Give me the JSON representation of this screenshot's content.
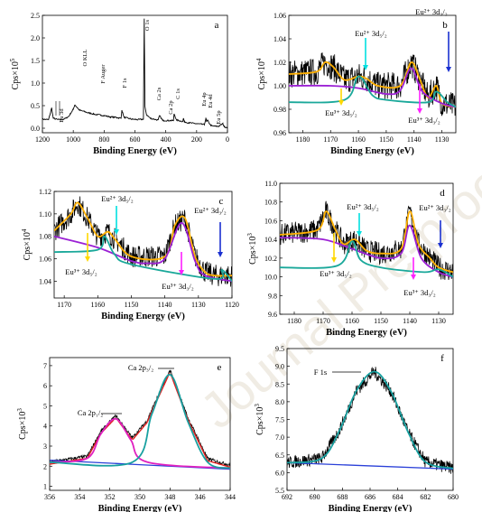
{
  "watermark": "Journal Pre-proof",
  "panels": [
    {
      "id": "a",
      "label": "a",
      "ylabel_base": "Cps×10",
      "ylabel_exp": "5",
      "xlabel": "Binding Energy (eV)",
      "annotations": [
        "O 1s",
        "O KLL",
        "F Auger",
        "F 1s",
        "Ca 2s",
        "C 1s",
        "Ca 2p",
        "Eu 4p",
        "Eu 4d",
        "Eu 3d",
        "Eu 5p"
      ]
    },
    {
      "id": "b",
      "label": "b",
      "ylabel_base": "Cps×10",
      "ylabel_exp": "4",
      "xlabel": "Binding Energy (eV)",
      "annotations": [
        "Eu³⁺ 3d₅/₂",
        "Eu²⁺ 3d₅/₂",
        "Eu³⁺ 3d₃/₂",
        "Eu²⁺ 3d₃/₂"
      ]
    },
    {
      "id": "c",
      "label": "c",
      "ylabel_base": "Cps×10",
      "ylabel_exp": "4",
      "xlabel": "Binding Energy (eV)",
      "annotations": [
        "Eu³⁺ 3d₅/₂",
        "Eu²⁺ 3d₅/₂",
        "Eu³⁺ 3d₃/₂",
        "Eu²⁺ 3d₃/₂"
      ]
    },
    {
      "id": "d",
      "label": "d",
      "ylabel_base": "Cps×10",
      "ylabel_exp": "3",
      "xlabel": "Bindng Energy (eV)",
      "annotations": [
        "Eu³⁺ 3d₅/₂",
        "Eu²⁺ 3d₅/₂",
        "Eu³⁺ 3d₃/₂",
        "Eu²⁺ 3d₃/₂"
      ]
    },
    {
      "id": "e",
      "label": "e",
      "ylabel_base": "Cps×10",
      "ylabel_exp": "3",
      "xlabel": "Binding Energy (eV)",
      "annotations": [
        "Ca 2p₃/₂",
        "Ca 2p₁/₂"
      ]
    },
    {
      "id": "f",
      "label": "f",
      "ylabel_base": "Cps×10",
      "ylabel_exp": "3",
      "xlabel": "Binding Energy (eV)",
      "annotations": [
        "F 1s"
      ]
    }
  ],
  "colors": {
    "raw": "#000000",
    "envelope": "#ffb000",
    "eu3_fit": "#9b20d4",
    "eu2_fit": "#1aa89a",
    "eu3_peak": "#e020c0",
    "eu2_peak": "#1a30d0",
    "background": "#2a40d8",
    "arrow_yellow": "#ffd800",
    "arrow_cyan": "#00e0e0",
    "arrow_magenta": "#ff20ff",
    "arrow_blue": "#1a30d0",
    "ca_peak1": "#e020c0",
    "ca_peak2": "#18a0a0",
    "ca_bg": "#2a40d8",
    "fit_red": "#e02020"
  },
  "chart_data": [
    {
      "panel": "a",
      "type": "line",
      "x_reversed": true,
      "xlim": [
        1200,
        0
      ],
      "ylim": [
        -0.1,
        2.5
      ],
      "xticks": [
        1200,
        1000,
        800,
        600,
        400,
        200,
        0
      ],
      "yticks": [
        0.0,
        0.5,
        1.0,
        1.5,
        2.0,
        2.5
      ],
      "series": [
        {
          "x": [
            1200,
            1160,
            1140,
            1130,
            1100,
            1060,
            1030,
            1000,
            990,
            980,
            960,
            900,
            850,
            820,
            800,
            760,
            720,
            690,
            685,
            670,
            620,
            580,
            545,
            540,
            535,
            525,
            500,
            450,
            440,
            420,
            350,
            346,
            330,
            290,
            285,
            280,
            250,
            200,
            150,
            140,
            135,
            130,
            110,
            100,
            60,
            30,
            20,
            0
          ],
          "y": [
            0.2,
            0.19,
            0.45,
            0.22,
            0.19,
            0.2,
            0.26,
            0.42,
            0.52,
            0.48,
            0.4,
            0.34,
            0.3,
            0.29,
            0.28,
            0.25,
            0.24,
            0.22,
            0.4,
            0.24,
            0.2,
            0.19,
            0.2,
            2.42,
            0.48,
            0.3,
            0.22,
            0.18,
            0.28,
            0.17,
            0.17,
            0.32,
            0.18,
            0.15,
            0.22,
            0.14,
            0.12,
            0.1,
            0.08,
            0.22,
            0.14,
            0.18,
            0.07,
            0.05,
            0.04,
            0.1,
            0.03,
            0.02
          ]
        }
      ]
    },
    {
      "panel": "b",
      "type": "line",
      "x_reversed": true,
      "xlim": [
        1185,
        1125
      ],
      "ylim": [
        0.96,
        1.06
      ],
      "xticks": [
        1180,
        1170,
        1160,
        1150,
        1140,
        1130
      ],
      "yticks": [
        0.96,
        0.98,
        1.0,
        1.02,
        1.04,
        1.06
      ],
      "series": [
        {
          "name": "envelope",
          "x": [
            1185,
            1175,
            1172,
            1169,
            1165,
            1160,
            1157,
            1153,
            1145,
            1141,
            1138,
            1135,
            1132,
            1130,
            1125
          ],
          "y": [
            1.01,
            1.012,
            1.02,
            1.016,
            1.005,
            1.008,
            1.006,
            1.0,
            1.0,
            1.02,
            1.006,
            0.99,
            1.0,
            0.985,
            0.982
          ]
        },
        {
          "name": "eu3-fit",
          "x": [
            1185,
            1170,
            1160,
            1150,
            1145,
            1141,
            1137,
            1130,
            1125
          ],
          "y": [
            1.0,
            1.0,
            0.998,
            0.993,
            0.996,
            1.015,
            0.995,
            0.985,
            0.982
          ]
        },
        {
          "name": "eu2-fit",
          "x": [
            1185,
            1165,
            1160,
            1155,
            1150,
            1135,
            1132,
            1128,
            1125
          ],
          "y": [
            0.986,
            0.988,
            1.008,
            0.992,
            0.988,
            0.986,
            0.995,
            0.986,
            0.982
          ]
        }
      ]
    },
    {
      "panel": "c",
      "type": "line",
      "x_reversed": true,
      "xlim": [
        1173,
        1120
      ],
      "ylim": [
        1.025,
        1.12
      ],
      "xticks": [
        1170,
        1160,
        1150,
        1140,
        1130,
        1120
      ],
      "yticks": [
        1.04,
        1.06,
        1.08,
        1.1,
        1.12
      ],
      "series": [
        {
          "name": "envelope",
          "x": [
            1173,
            1168,
            1166,
            1163,
            1160,
            1157,
            1155,
            1150,
            1140,
            1137,
            1134,
            1131,
            1128,
            1125,
            1120
          ],
          "y": [
            1.085,
            1.1,
            1.11,
            1.096,
            1.08,
            1.084,
            1.078,
            1.062,
            1.062,
            1.09,
            1.096,
            1.062,
            1.048,
            1.045,
            1.045
          ]
        },
        {
          "name": "eu3-fit",
          "x": [
            1173,
            1160,
            1150,
            1145,
            1140,
            1135,
            1131,
            1128,
            1120
          ],
          "y": [
            1.08,
            1.07,
            1.058,
            1.056,
            1.06,
            1.092,
            1.058,
            1.045,
            1.04
          ]
        },
        {
          "name": "eu2-fit",
          "x": [
            1173,
            1160,
            1158,
            1155,
            1150,
            1125,
            1123,
            1120
          ],
          "y": [
            1.066,
            1.068,
            1.08,
            1.064,
            1.055,
            1.042,
            1.05,
            1.04
          ]
        }
      ]
    },
    {
      "panel": "d",
      "type": "line",
      "x_reversed": true,
      "xlim": [
        1185,
        1125
      ],
      "ylim": [
        9.6,
        11.0
      ],
      "xticks": [
        1180,
        1170,
        1160,
        1150,
        1140,
        1130
      ],
      "yticks": [
        9.6,
        9.8,
        10.0,
        10.2,
        10.4,
        10.6,
        10.8,
        11.0
      ],
      "series": [
        {
          "name": "envelope",
          "x": [
            1185,
            1172,
            1169,
            1166,
            1163,
            1159,
            1155,
            1150,
            1143,
            1140,
            1137,
            1133,
            1130,
            1125
          ],
          "y": [
            10.45,
            10.5,
            10.7,
            10.52,
            10.35,
            10.4,
            10.28,
            10.25,
            10.3,
            10.7,
            10.35,
            10.2,
            10.1,
            10.05
          ]
        },
        {
          "name": "eu3-fit",
          "x": [
            1185,
            1170,
            1160,
            1150,
            1143,
            1140,
            1136,
            1130,
            1125
          ],
          "y": [
            10.42,
            10.4,
            10.3,
            10.2,
            10.25,
            10.55,
            10.2,
            10.05,
            10.0
          ]
        },
        {
          "name": "eu2-fit",
          "x": [
            1185,
            1165,
            1160,
            1157,
            1150,
            1135,
            1130,
            1125
          ],
          "y": [
            10.1,
            10.12,
            10.38,
            10.18,
            10.1,
            10.05,
            10.08,
            10.0
          ]
        }
      ]
    },
    {
      "panel": "e",
      "type": "line",
      "x_reversed": true,
      "xlim": [
        356,
        344
      ],
      "ylim": [
        0.8,
        7.4
      ],
      "xticks": [
        356,
        354,
        352,
        350,
        348,
        346,
        344
      ],
      "yticks": [
        1,
        2,
        3,
        4,
        5,
        6,
        7
      ],
      "series": [
        {
          "name": "background",
          "x": [
            356,
            344
          ],
          "y": [
            2.3,
            1.85
          ]
        },
        {
          "name": "ca-2p1/2",
          "x": [
            356,
            353.5,
            352.6,
            351.6,
            350.6,
            349.5,
            344
          ],
          "y": [
            2.2,
            2.4,
            3.6,
            4.35,
            3.3,
            2.2,
            1.9
          ]
        },
        {
          "name": "ca-2p3/2",
          "x": [
            356,
            350.5,
            349.2,
            348.0,
            346.8,
            345.5,
            344
          ],
          "y": [
            2.2,
            2.2,
            4.6,
            6.55,
            4.2,
            2.2,
            1.9
          ]
        }
      ]
    },
    {
      "panel": "f",
      "type": "line",
      "x_reversed": true,
      "xlim": [
        692,
        680
      ],
      "ylim": [
        5.5,
        9.5
      ],
      "xticks": [
        692,
        690,
        688,
        686,
        684,
        682,
        680
      ],
      "yticks": [
        5.5,
        6.0,
        6.5,
        7.0,
        7.5,
        8.0,
        8.5,
        9.0,
        9.5
      ],
      "series": [
        {
          "name": "background",
          "x": [
            692,
            680
          ],
          "y": [
            6.28,
            6.1
          ]
        },
        {
          "name": "f1s-fit",
          "x": [
            692,
            689.5,
            688.2,
            687.0,
            685.7,
            684.5,
            683.2,
            682,
            680
          ],
          "y": [
            6.28,
            6.4,
            7.2,
            8.3,
            8.85,
            8.3,
            7.1,
            6.3,
            6.12
          ]
        }
      ]
    }
  ]
}
